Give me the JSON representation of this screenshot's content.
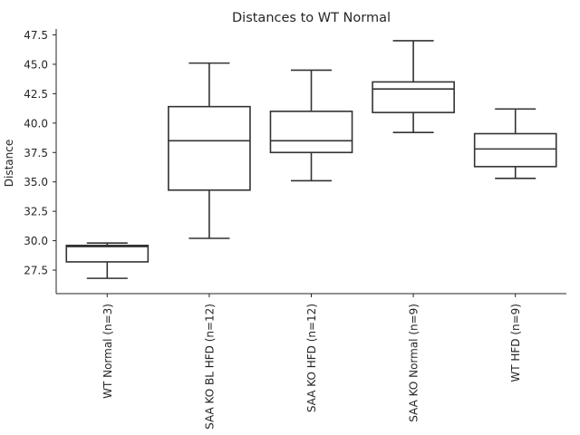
{
  "chart_data": {
    "type": "box",
    "title": "Distances to WT Normal",
    "xlabel": "",
    "ylabel": "Distance",
    "ylim": [
      25.5,
      48.0
    ],
    "yticks": [
      "27.5",
      "30.0",
      "32.5",
      "35.0",
      "37.5",
      "40.0",
      "42.5",
      "45.0",
      "47.5"
    ],
    "grid": false,
    "categories": [
      "WT Normal (n=3)",
      "SAA KO BL HFD (n=12)",
      "SAA KO HFD (n=12)",
      "SAA KO Normal (n=9)",
      "WT HFD (n=9)"
    ],
    "boxes": [
      {
        "whisker_low": 26.8,
        "q1": 28.2,
        "median": 29.5,
        "q3": 29.6,
        "whisker_high": 29.8
      },
      {
        "whisker_low": 30.2,
        "q1": 34.3,
        "median": 38.5,
        "q3": 41.4,
        "whisker_high": 45.1
      },
      {
        "whisker_low": 35.1,
        "q1": 37.5,
        "median": 38.5,
        "q3": 41.0,
        "whisker_high": 44.5
      },
      {
        "whisker_low": 39.2,
        "q1": 40.9,
        "median": 42.9,
        "q3": 43.5,
        "whisker_high": 47.0
      },
      {
        "whisker_low": 35.3,
        "q1": 36.3,
        "median": 37.8,
        "q3": 39.1,
        "whisker_high": 41.2
      }
    ],
    "colors": {
      "line": "#333333",
      "box_fill": "#ffffff",
      "axis": "#262626"
    }
  }
}
